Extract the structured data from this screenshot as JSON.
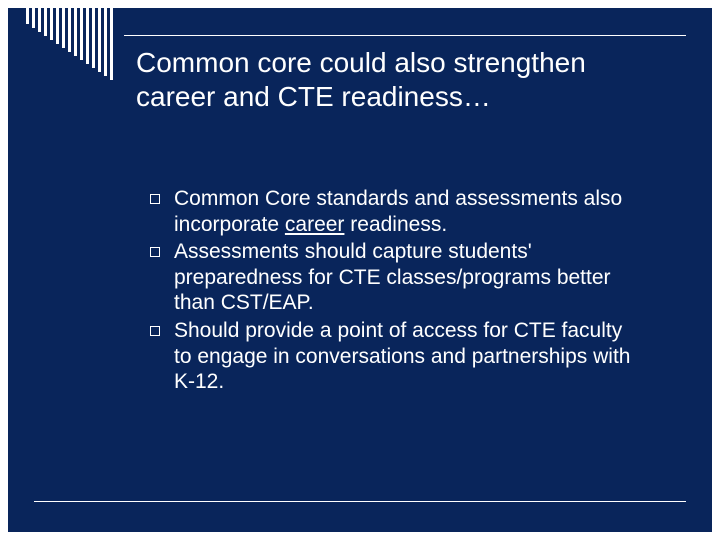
{
  "slide": {
    "background_color": "#09255b",
    "page_background": "#ffffff",
    "title": "Common core could also strengthen career and CTE readiness…",
    "title_fontsize": 28,
    "title_color": "#ffffff",
    "body_fontsize": 21,
    "body_color": "#ffffff",
    "bullet_marker": {
      "shape": "square-outline",
      "size": 8,
      "border_color": "#ffffff",
      "fill": "#09255b"
    },
    "decor": {
      "bars": {
        "count": 15,
        "width": 3,
        "gap": 3,
        "color": "#ffffff",
        "min_height": 16,
        "max_height": 72
      },
      "title_line_color": "#ffffff",
      "bottom_line_color": "#ffffff"
    },
    "bullets": [
      {
        "pre": "Common Core standards and assessments also incorporate ",
        "underlined": "career",
        "post": " readiness."
      },
      {
        "pre": "Assessments should capture students' preparedness for CTE classes/programs better than CST/EAP.",
        "underlined": "",
        "post": ""
      },
      {
        "pre": "Should provide a point of access for CTE faculty to engage in conversations and partnerships with K-12.",
        "underlined": "",
        "post": ""
      }
    ]
  }
}
